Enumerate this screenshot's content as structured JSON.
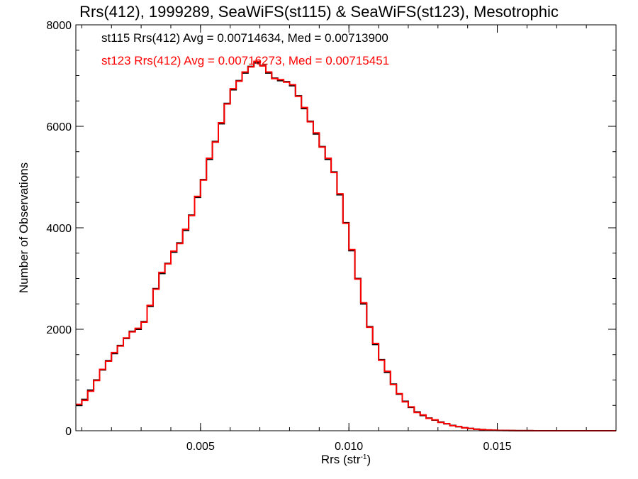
{
  "chart_data": {
    "type": "line",
    "title": "Rrs(412), 1999289, SeaWiFS(st115) & SeaWiFS(st123), Mesotrophic",
    "xlabel": "Rrs (str",
    "xlabel_exponent": "-1",
    "xlabel_close": ")",
    "ylabel": "Number of Observations",
    "xlim": [
      0.0008,
      0.019
    ],
    "ylim": [
      0,
      8000
    ],
    "x_ticks": [
      {
        "value": 0.005,
        "label": "0.005"
      },
      {
        "value": 0.01,
        "label": "0.010"
      },
      {
        "value": 0.015,
        "label": "0.015"
      }
    ],
    "y_ticks": [
      {
        "value": 0,
        "label": "0"
      },
      {
        "value": 2000,
        "label": "2000"
      },
      {
        "value": 4000,
        "label": "4000"
      },
      {
        "value": 6000,
        "label": "6000"
      },
      {
        "value": 8000,
        "label": "8000"
      }
    ],
    "x_minor_step": 0.001,
    "y_minor_step": 500,
    "grid": false,
    "legend_position": "top-left",
    "stat_lines": [
      "st115 Rrs(412) Avg = 0.00714634, Med = 0.00713900",
      "st123 Rrs(412) Avg = 0.00716273, Med = 0.00715451"
    ],
    "x": [
      0.0008,
      0.001,
      0.0012,
      0.0014,
      0.0016,
      0.0018,
      0.002,
      0.0022,
      0.0024,
      0.0026,
      0.0028,
      0.003,
      0.0032,
      0.0034,
      0.0036,
      0.0038,
      0.004,
      0.0042,
      0.0044,
      0.0046,
      0.0048,
      0.005,
      0.0052,
      0.0054,
      0.0056,
      0.0058,
      0.006,
      0.0062,
      0.0064,
      0.0066,
      0.0068,
      0.007,
      0.0072,
      0.0074,
      0.0076,
      0.0078,
      0.008,
      0.0082,
      0.0084,
      0.0086,
      0.0088,
      0.009,
      0.0092,
      0.0094,
      0.0096,
      0.0098,
      0.01,
      0.0102,
      0.0104,
      0.0106,
      0.0108,
      0.011,
      0.0112,
      0.0114,
      0.0116,
      0.0118,
      0.012,
      0.0122,
      0.0124,
      0.0126,
      0.0128,
      0.013,
      0.0132,
      0.0134,
      0.0136,
      0.0138,
      0.014,
      0.0142,
      0.0144,
      0.0146,
      0.0148,
      0.015,
      0.0152,
      0.0154,
      0.0156,
      0.0158,
      0.016,
      0.0162,
      0.0164,
      0.0166,
      0.0168,
      0.017,
      0.0172,
      0.0174,
      0.0176,
      0.0178,
      0.018,
      0.0182,
      0.0184,
      0.0186,
      0.0188,
      0.019
    ],
    "series": [
      {
        "name": "st115",
        "color": "#000000",
        "values": [
          500,
          620,
          800,
          1000,
          1200,
          1380,
          1520,
          1680,
          1820,
          1960,
          2000,
          2150,
          2450,
          2800,
          3100,
          3300,
          3520,
          3700,
          3950,
          4250,
          4600,
          4950,
          5350,
          5700,
          6050,
          6450,
          6720,
          6900,
          7050,
          7180,
          7250,
          7200,
          7050,
          6950,
          6900,
          6880,
          6800,
          6600,
          6350,
          6100,
          5850,
          5600,
          5350,
          5100,
          4650,
          4100,
          3550,
          3000,
          2500,
          2050,
          1700,
          1400,
          1150,
          920,
          720,
          580,
          460,
          370,
          300,
          250,
          210,
          170,
          135,
          105,
          80,
          60,
          45,
          32,
          22,
          15,
          10,
          7,
          5,
          3,
          2,
          1,
          1,
          0,
          0,
          0,
          0,
          0,
          0,
          0,
          0,
          0,
          0,
          0,
          0,
          0,
          0,
          0
        ]
      },
      {
        "name": "st123",
        "color": "#ff0000",
        "values": [
          520,
          600,
          780,
          990,
          1210,
          1370,
          1540,
          1670,
          1830,
          1950,
          2020,
          2140,
          2470,
          2790,
          3120,
          3290,
          3540,
          3690,
          3970,
          4240,
          4620,
          4940,
          5370,
          5690,
          6070,
          6440,
          6740,
          6890,
          7070,
          7170,
          7280,
          7190,
          7070,
          6940,
          6920,
          6870,
          6820,
          6590,
          6370,
          6090,
          5870,
          5590,
          5370,
          5090,
          4670,
          4090,
          3570,
          2990,
          2520,
          2040,
          1720,
          1390,
          1170,
          910,
          730,
          570,
          470,
          360,
          310,
          245,
          215,
          165,
          140,
          100,
          82,
          58,
          46,
          30,
          23,
          14,
          11,
          6,
          5,
          3,
          2,
          1,
          1,
          0,
          0,
          0,
          0,
          0,
          0,
          0,
          0,
          0,
          0,
          0,
          0,
          0,
          0,
          0
        ]
      }
    ]
  }
}
